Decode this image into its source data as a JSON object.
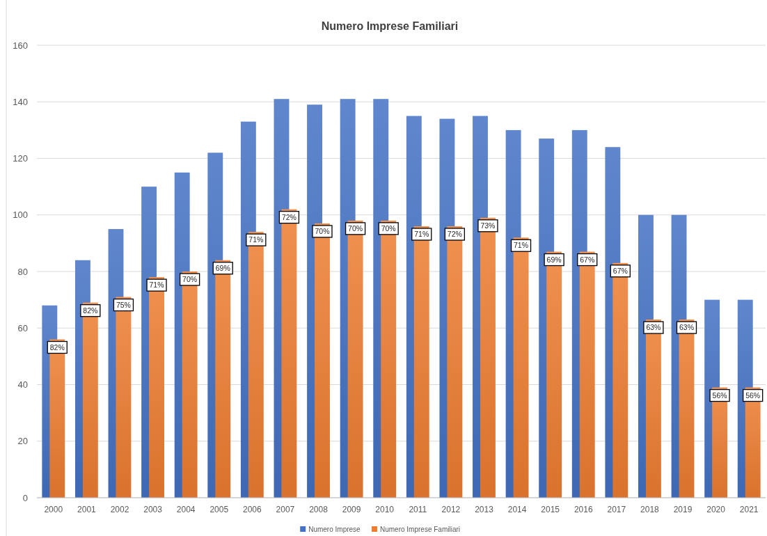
{
  "chart_data": {
    "type": "bar",
    "title": "Numero Imprese Familiari",
    "categories": [
      "2000",
      "2001",
      "2002",
      "2003",
      "2004",
      "2005",
      "2006",
      "2007",
      "2008",
      "2009",
      "2010",
      "2011",
      "2012",
      "2013",
      "2014",
      "2015",
      "2016",
      "2017",
      "2018",
      "2019",
      "2020",
      "2021"
    ],
    "series": [
      {
        "name": "Numero Imprese",
        "color": "#4472c4",
        "values": [
          68,
          84,
          95,
          110,
          115,
          122,
          133,
          141,
          139,
          141,
          141,
          135,
          134,
          135,
          130,
          127,
          130,
          124,
          100,
          100,
          70,
          70
        ]
      },
      {
        "name": "Numero Imprese Familiari",
        "color": "#ed7d31",
        "values": [
          56,
          69,
          71,
          78,
          80,
          84,
          94,
          102,
          97,
          98,
          98,
          96,
          96,
          99,
          92,
          87,
          87,
          83,
          63,
          63,
          39,
          39
        ]
      }
    ],
    "annotations": [
      {
        "text": "82%",
        "x": "2000",
        "y": 56
      },
      {
        "text": "82%",
        "x": "2001",
        "y": 69
      },
      {
        "text": "75%",
        "x": "2002",
        "y": 71
      },
      {
        "text": "71%",
        "x": "2003",
        "y": 78
      },
      {
        "text": "70%",
        "x": "2004",
        "y": 80
      },
      {
        "text": "69%",
        "x": "2005",
        "y": 84
      },
      {
        "text": "71%",
        "x": "2006",
        "y": 94
      },
      {
        "text": "72%",
        "x": "2007",
        "y": 102
      },
      {
        "text": "70%",
        "x": "2008",
        "y": 97
      },
      {
        "text": "70%",
        "x": "2009",
        "y": 98
      },
      {
        "text": "70%",
        "x": "2010",
        "y": 98
      },
      {
        "text": "71%",
        "x": "2011",
        "y": 96
      },
      {
        "text": "72%",
        "x": "2012",
        "y": 96
      },
      {
        "text": "73%",
        "x": "2013",
        "y": 99
      },
      {
        "text": "71%",
        "x": "2014",
        "y": 92
      },
      {
        "text": "69%",
        "x": "2015",
        "y": 87
      },
      {
        "text": "67%",
        "x": "2016",
        "y": 87
      },
      {
        "text": "67%",
        "x": "2017",
        "y": 83
      },
      {
        "text": "63%",
        "x": "2018",
        "y": 63
      },
      {
        "text": "63%",
        "x": "2019",
        "y": 63
      },
      {
        "text": "56%",
        "x": "2020",
        "y": 39
      },
      {
        "text": "56%",
        "x": "2021",
        "y": 39
      }
    ],
    "ylim": [
      0,
      160
    ],
    "yticks": [
      0,
      20,
      40,
      60,
      80,
      100,
      120,
      140,
      160
    ],
    "grid": "y",
    "legend": "bottom"
  }
}
